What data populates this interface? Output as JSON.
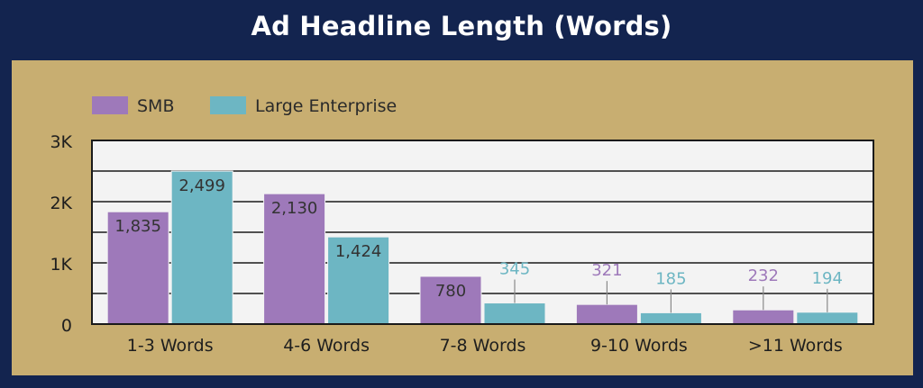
{
  "chart_data": {
    "type": "bar",
    "title": "Ad Headline Length (Words)",
    "categories": [
      "1-3 Words",
      "4-6 Words",
      "7-8 Words",
      "9-10 Words",
      ">11 Words"
    ],
    "series": [
      {
        "name": "SMB",
        "color": "#9e79ba",
        "labels": [
          "1,835",
          "2,130",
          "780",
          "321",
          "232"
        ],
        "values": [
          1835,
          2130,
          780,
          321,
          232
        ]
      },
      {
        "name": "Large Enterprise",
        "color": "#6db6c3",
        "labels": [
          "2,499",
          "1,424",
          "345",
          "185",
          "194"
        ],
        "values": [
          2499,
          1424,
          345,
          185,
          194
        ]
      }
    ],
    "yticks": [
      {
        "value": 0,
        "label": "0"
      },
      {
        "value": 1000,
        "label": "1K"
      },
      {
        "value": 2000,
        "label": "2K"
      },
      {
        "value": 3000,
        "label": "3K"
      }
    ],
    "ylim": [
      0,
      3000
    ],
    "grid": true,
    "legend": "top-left"
  }
}
